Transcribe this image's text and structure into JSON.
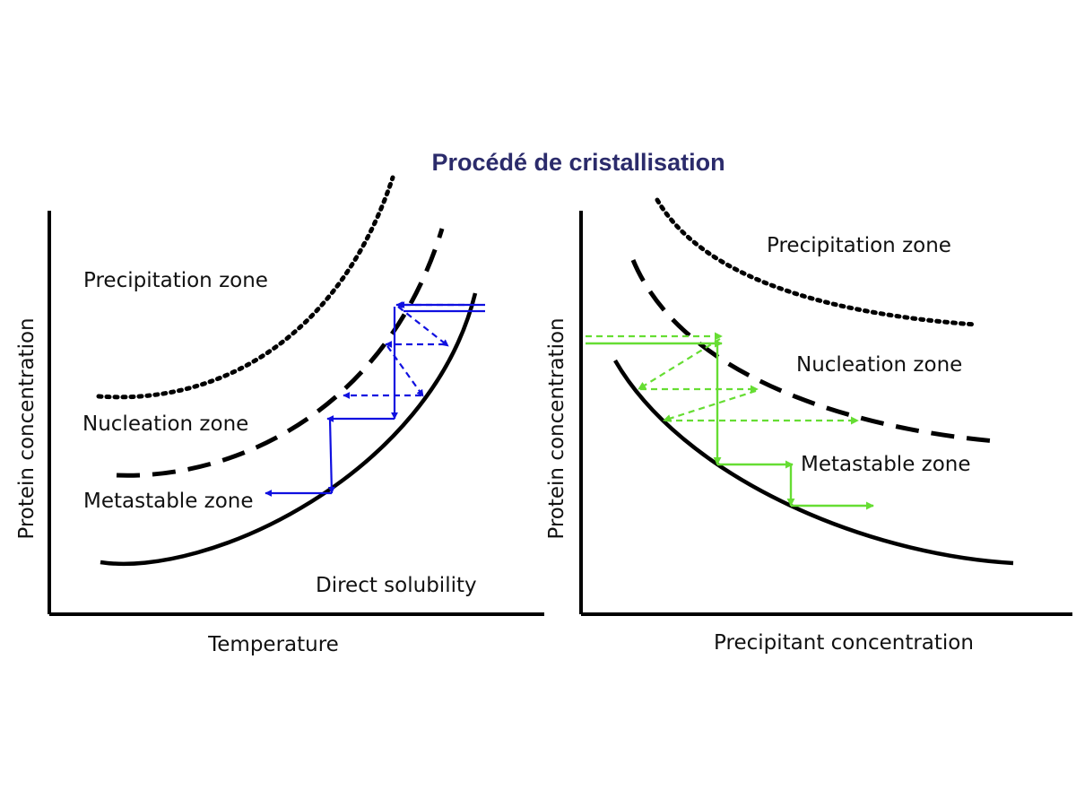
{
  "title": "Procédé de cristallisation",
  "left_diagram": {
    "y_axis_label": "Protein concentration",
    "x_axis_label": "Temperature",
    "zones": {
      "precipitation": "Precipitation zone",
      "nucleation": "Nucleation zone",
      "metastable": "Metastable zone",
      "solubility": "Direct solubility"
    },
    "arrow_color": "#1010e0"
  },
  "right_diagram": {
    "y_axis_label": "Protein concentration",
    "x_axis_label": "Precipitant concentration",
    "zones": {
      "precipitation": "Precipitation zone",
      "nucleation": "Nucleation zone",
      "metastable": "Metastable zone"
    },
    "arrow_color": "#66dd33"
  }
}
